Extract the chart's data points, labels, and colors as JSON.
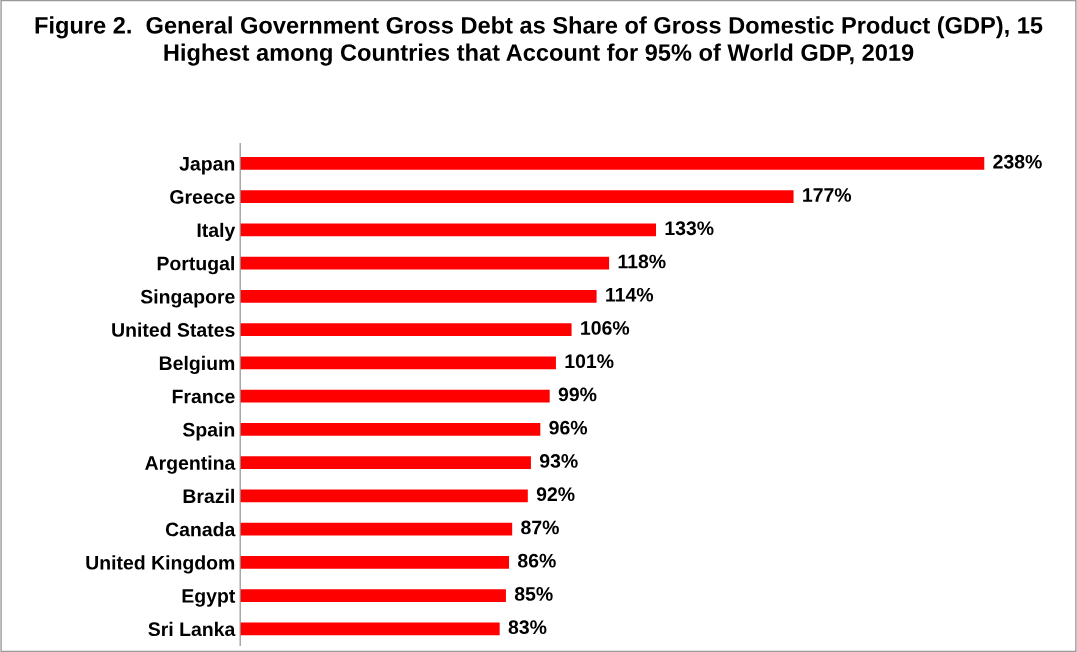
{
  "chart_data": {
    "type": "bar",
    "orientation": "horizontal",
    "title": "Figure 2.  General Government Gross Debt as Share of Gross Domestic Product (GDP), 15 Highest among Countries that Account for 95% of World GDP, 2019",
    "categories": [
      "Japan",
      "Greece",
      "Italy",
      "Portugal",
      "Singapore",
      "United States",
      "Belgium",
      "France",
      "Spain",
      "Argentina",
      "Brazil",
      "Canada",
      "United Kingdom",
      "Egypt",
      "Sri Lanka"
    ],
    "values": [
      238,
      177,
      133,
      118,
      114,
      106,
      101,
      99,
      96,
      93,
      92,
      87,
      86,
      85,
      83
    ],
    "value_labels": [
      "238%",
      "177%",
      "133%",
      "118%",
      "114%",
      "106%",
      "101%",
      "99%",
      "96%",
      "93%",
      "92%",
      "87%",
      "86%",
      "85%",
      "83%"
    ],
    "color": "#ff0000",
    "grid": false,
    "legend": false,
    "tick_labels": "y"
  }
}
